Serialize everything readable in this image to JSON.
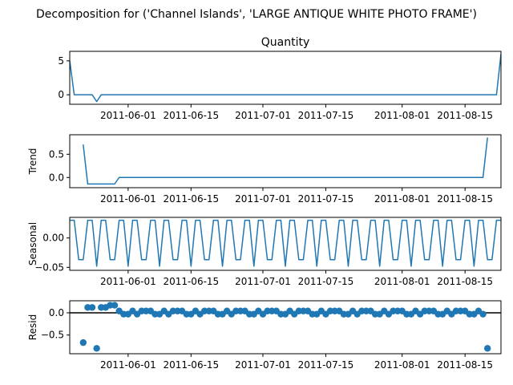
{
  "chart_data": {
    "type": "line",
    "suptitle": "Decomposition for ('Channel Islands', 'LARGE ANTIQUE WHITE PHOTO FRAME')",
    "xlim": [
      "2011-05-19",
      "2011-08-23"
    ],
    "x_tick_labels": [
      "2011-06-01",
      "2011-06-15",
      "2011-07-01",
      "2011-07-15",
      "2011-08-01",
      "2011-08-15"
    ],
    "x_tick_dates": [
      "2011-06-01",
      "2011-06-15",
      "2011-07-01",
      "2011-07-15",
      "2011-08-01",
      "2011-08-15"
    ],
    "color": "#1f77b4",
    "subplots": [
      {
        "name": "quantity",
        "kind": "line",
        "title": "Quantity",
        "ylabel": "",
        "ylim": [
          -1.4,
          6.4
        ],
        "yticks": [
          0,
          5
        ],
        "ytick_labels": [
          "0",
          "5"
        ],
        "points": [
          [
            "2011-05-19",
            5
          ],
          [
            "2011-05-20",
            0
          ],
          [
            "2011-05-24",
            0
          ],
          [
            "2011-05-25",
            -1
          ],
          [
            "2011-05-26",
            0
          ],
          [
            "2011-08-22",
            0
          ],
          [
            "2011-08-23",
            6
          ]
        ]
      },
      {
        "name": "trend",
        "kind": "line",
        "title": "",
        "ylabel": "Trend",
        "ylim": [
          -0.22,
          0.92
        ],
        "yticks": [
          0.0,
          0.5
        ],
        "ytick_labels": [
          "0.0",
          "0.5"
        ],
        "points": [
          [
            "2011-05-22",
            0.71
          ],
          [
            "2011-05-23",
            -0.14
          ],
          [
            "2011-05-29",
            -0.14
          ],
          [
            "2011-05-30",
            0.0
          ],
          [
            "2011-08-19",
            0.0
          ],
          [
            "2011-08-20",
            0.86
          ]
        ]
      },
      {
        "name": "seasonal",
        "kind": "periodic",
        "title": "",
        "ylabel": "Seasonal",
        "ylim": [
          -0.055,
          0.035
        ],
        "yticks": [
          -0.05,
          0.0
        ],
        "ytick_labels": [
          "−0.05",
          "0.00"
        ],
        "start": "2011-05-19",
        "end": "2011-08-23",
        "pattern": [
          0.03,
          0.03,
          -0.037,
          -0.037,
          0.03,
          0.03,
          -0.048
        ]
      },
      {
        "name": "resid",
        "kind": "scatter",
        "title": "",
        "ylabel": "Resid",
        "ylim": [
          -0.92,
          0.27
        ],
        "yticks": [
          -0.5,
          0.0
        ],
        "ytick_labels": [
          "−0.5",
          "0.0"
        ],
        "zero_line": true,
        "special_points": [
          [
            "2011-05-22",
            -0.67
          ],
          [
            "2011-05-23",
            0.12
          ],
          [
            "2011-05-24",
            0.12
          ],
          [
            "2011-05-25",
            -0.8
          ],
          [
            "2011-05-26",
            0.12
          ],
          [
            "2011-05-27",
            0.12
          ],
          [
            "2011-05-28",
            0.17
          ],
          [
            "2011-05-29",
            0.17
          ],
          [
            "2011-08-20",
            -0.8
          ]
        ],
        "regular_start": "2011-05-30",
        "regular_end": "2011-08-19",
        "regular_pattern": [
          0.04,
          -0.03,
          -0.03,
          0.04,
          -0.03,
          0.04,
          0.04
        ]
      }
    ]
  }
}
